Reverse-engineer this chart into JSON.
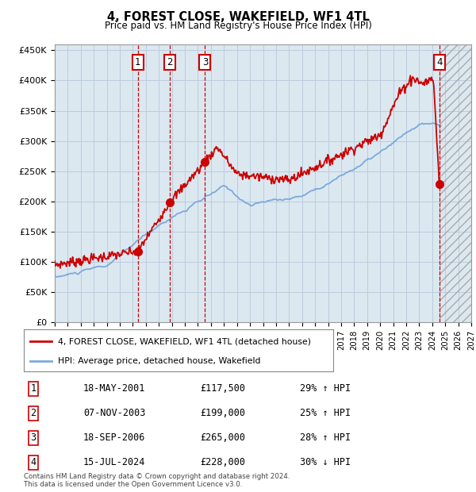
{
  "title": "4, FOREST CLOSE, WAKEFIELD, WF1 4TL",
  "subtitle": "Price paid vs. HM Land Registry's House Price Index (HPI)",
  "ylabel_ticks": [
    "£0",
    "£50K",
    "£100K",
    "£150K",
    "£200K",
    "£250K",
    "£300K",
    "£350K",
    "£400K",
    "£450K"
  ],
  "ytick_values": [
    0,
    50000,
    100000,
    150000,
    200000,
    250000,
    300000,
    350000,
    400000,
    450000
  ],
  "xlim_start": 1995.0,
  "xlim_end": 2027.0,
  "ylim_min": 0,
  "ylim_max": 460000,
  "hpi_color": "#7aaadd",
  "price_color": "#cc0000",
  "sale_markers": [
    {
      "num": 1,
      "year": 2001.38,
      "price": 117500
    },
    {
      "num": 2,
      "year": 2003.85,
      "price": 199000
    },
    {
      "num": 3,
      "year": 2006.55,
      "price": 265000
    },
    {
      "num": 4,
      "year": 2024.54,
      "price": 228000
    }
  ],
  "legend_line1": "4, FOREST CLOSE, WAKEFIELD, WF1 4TL (detached house)",
  "legend_line2": "HPI: Average price, detached house, Wakefield",
  "table_data": [
    [
      "1",
      "18-MAY-2001",
      "£117,500",
      "29% ↑ HPI"
    ],
    [
      "2",
      "07-NOV-2003",
      "£199,000",
      "25% ↑ HPI"
    ],
    [
      "3",
      "18-SEP-2006",
      "£265,000",
      "28% ↑ HPI"
    ],
    [
      "4",
      "15-JUL-2024",
      "£228,000",
      "30% ↓ HPI"
    ]
  ],
  "footer": "Contains HM Land Registry data © Crown copyright and database right 2024.\nThis data is licensed under the Open Government Licence v3.0.",
  "hatch_region_start": 2024.54,
  "background_color": "#ffffff",
  "grid_color": "#bbccdd",
  "plot_bg_color": "#dce8f0"
}
